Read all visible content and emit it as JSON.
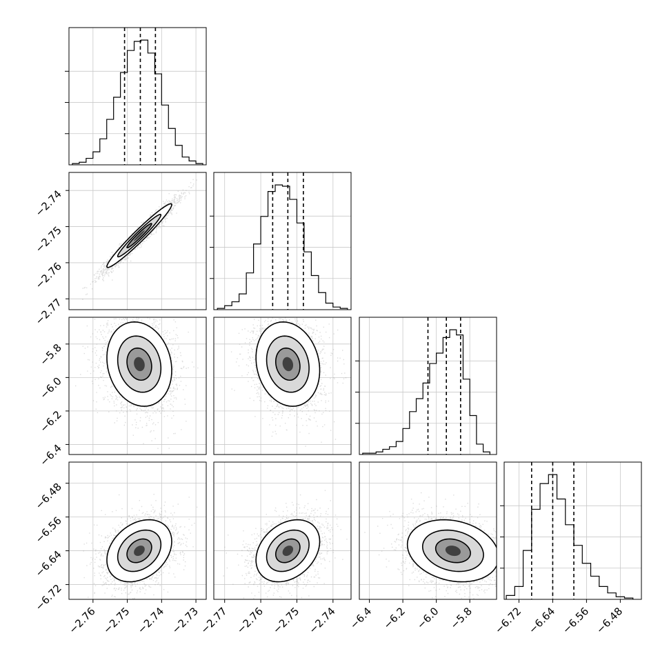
{
  "chart_data": {
    "type": "corner",
    "params": [
      {
        "range": [
          -2.767,
          -2.727
        ],
        "ticks": [
          -2.76,
          -2.75,
          -2.74,
          -2.73
        ],
        "tick_labels": [
          "−2.76",
          "−2.75",
          "−2.74",
          "−2.73"
        ],
        "median": -2.7462,
        "q16": -2.7508,
        "q84": -2.7418
      },
      {
        "range": [
          -2.773,
          -2.735
        ],
        "ticks": [
          -2.77,
          -2.76,
          -2.75,
          -2.74
        ],
        "tick_labels": [
          "−2.77",
          "−2.76",
          "−2.75",
          "−2.74"
        ],
        "median": -2.7525,
        "q16": -2.7567,
        "q84": -2.7482
      },
      {
        "range": [
          -6.46,
          -5.64
        ],
        "ticks": [
          -6.4,
          -6.2,
          -6.0,
          -5.8
        ],
        "tick_labels": [
          "−6.4",
          "−6.2",
          "−6.0",
          "−5.8"
        ],
        "median": -5.94,
        "q16": -6.05,
        "q84": -5.855
      },
      {
        "range": [
          -6.755,
          -6.43
        ],
        "ticks": [
          -6.72,
          -6.64,
          -6.56,
          -6.48
        ],
        "tick_labels": [
          "−6.72",
          "−6.64",
          "−6.56",
          "−6.48"
        ],
        "median": -6.64,
        "q16": -6.69,
        "q84": -6.59
      }
    ],
    "histograms": [
      {
        "bins": [
          -2.766,
          -2.764,
          -2.762,
          -2.76,
          -2.758,
          -2.756,
          -2.754,
          -2.752,
          -2.75,
          -2.748,
          -2.746,
          -2.744,
          -2.742,
          -2.74,
          -2.738,
          -2.736,
          -2.734,
          -2.732,
          -2.73,
          -2.728
        ],
        "counts": [
          1,
          2,
          5,
          10,
          20,
          35,
          52,
          71,
          88,
          95,
          96,
          86,
          70,
          46,
          28,
          15,
          6,
          3,
          1
        ]
      },
      {
        "bins": [
          -2.772,
          -2.77,
          -2.768,
          -2.766,
          -2.764,
          -2.762,
          -2.76,
          -2.758,
          -2.756,
          -2.754,
          -2.752,
          -2.75,
          -2.748,
          -2.746,
          -2.744,
          -2.742,
          -2.74,
          -2.738,
          -2.736
        ],
        "counts": [
          1,
          3,
          6,
          12,
          28,
          50,
          71,
          90,
          95,
          94,
          84,
          66,
          44,
          26,
          13,
          5,
          2,
          1
        ]
      },
      {
        "bins": [
          -6.44,
          -6.4,
          -6.36,
          -6.32,
          -6.28,
          -6.24,
          -6.2,
          -6.16,
          -6.12,
          -6.08,
          -6.04,
          -6.0,
          -5.96,
          -5.92,
          -5.88,
          -5.84,
          -5.8,
          -5.76,
          -5.72,
          -5.68
        ],
        "counts": [
          1,
          1,
          2,
          4,
          6,
          10,
          20,
          33,
          43,
          55,
          70,
          78,
          90,
          96,
          92,
          58,
          30,
          8,
          2
        ]
      },
      {
        "bins": [
          -6.75,
          -6.73,
          -6.71,
          -6.69,
          -6.67,
          -6.65,
          -6.63,
          -6.61,
          -6.59,
          -6.57,
          -6.55,
          -6.53,
          -6.51,
          -6.49,
          -6.47,
          -6.45
        ],
        "counts": [
          3,
          10,
          38,
          70,
          90,
          97,
          78,
          58,
          42,
          28,
          18,
          10,
          5,
          2,
          1
        ]
      }
    ],
    "pairs": [
      {
        "x": 0,
        "y": 1,
        "cx": -2.7465,
        "cy": -2.7525,
        "sx": 0.0045,
        "sy": 0.0042,
        "rho": 0.97
      },
      {
        "x": 0,
        "y": 2,
        "cx": -2.7465,
        "cy": -5.92,
        "sx": 0.0045,
        "sy": 0.12,
        "rho": -0.15
      },
      {
        "x": 1,
        "y": 2,
        "cx": -2.7525,
        "cy": -5.92,
        "sx": 0.0042,
        "sy": 0.12,
        "rho": -0.15
      },
      {
        "x": 0,
        "y": 3,
        "cx": -2.7465,
        "cy": -6.64,
        "sx": 0.0045,
        "sy": 0.035,
        "rho": 0.3
      },
      {
        "x": 1,
        "y": 3,
        "cx": -2.7525,
        "cy": -6.64,
        "sx": 0.0042,
        "sy": 0.035,
        "rho": 0.3
      },
      {
        "x": 2,
        "y": 3,
        "cx": -5.9,
        "cy": -6.64,
        "sx": 0.13,
        "sy": 0.035,
        "rho": -0.2
      }
    ],
    "grid": true
  }
}
